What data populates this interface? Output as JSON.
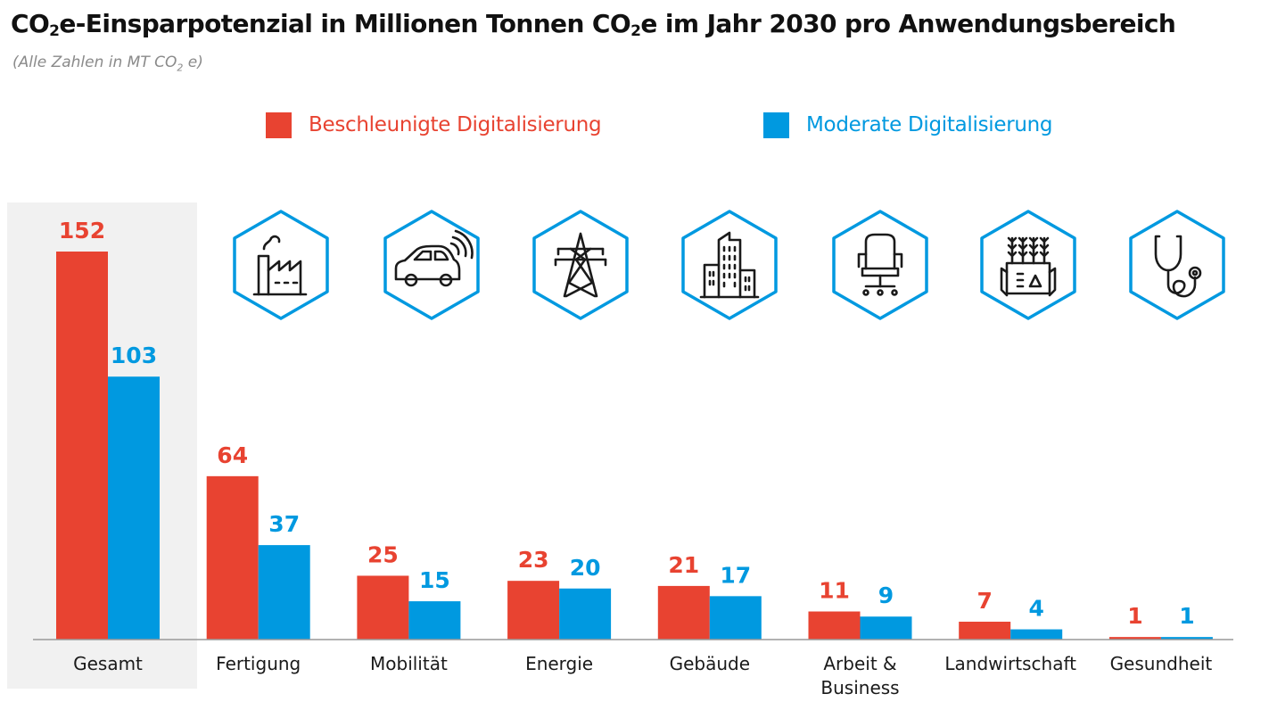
{
  "header": {
    "title_part1": "CO",
    "title_sub1": "2",
    "title_part2": "e-Einsparpotenzial in Millionen Tonnen CO",
    "title_sub2": "2",
    "title_part3": "e im Jahr 2030 pro Anwendungsbereich",
    "subtitle_part1": "(Alle Zahlen in MT CO",
    "subtitle_sub": "2",
    "subtitle_part2": " e)"
  },
  "colors": {
    "accelerated": "#e84331",
    "moderate": "#0099e0",
    "highlight_background": "#f1f1f1",
    "axis": "#999999",
    "icon_stroke": "#0099e0",
    "icon_fill": "#1a1a1a"
  },
  "legend": [
    {
      "label": "Beschleunigte Digitalisierung",
      "color": "#e84331"
    },
    {
      "label": "Moderate Digitalisierung",
      "color": "#0099e0"
    }
  ],
  "icons": [
    "factory-icon",
    "connected-car-icon",
    "power-pylon-icon",
    "buildings-icon",
    "office-chair-icon",
    "smart-farming-icon",
    "stethoscope-icon"
  ],
  "chart_data": {
    "type": "bar",
    "title": "CO2e-Einsparpotenzial in Millionen Tonnen CO2e im Jahr 2030 pro Anwendungsbereich",
    "subtitle": "(Alle Zahlen in MT CO2 e)",
    "categories": [
      "Gesamt",
      "Fertigung",
      "Mobilität",
      "Energie",
      "Gebäude",
      "Arbeit & Business",
      "Landwirtschaft",
      "Gesundheit"
    ],
    "category_lines": [
      [
        "Gesamt"
      ],
      [
        "Fertigung"
      ],
      [
        "Mobilität"
      ],
      [
        "Energie"
      ],
      [
        "Gebäude"
      ],
      [
        "Arbeit &",
        "Business"
      ],
      [
        "Landwirtschaft"
      ],
      [
        "Gesundheit"
      ]
    ],
    "series": [
      {
        "name": "Beschleunigte Digitalisierung",
        "values": [
          152,
          64,
          25,
          23,
          21,
          11,
          7,
          1
        ]
      },
      {
        "name": "Moderate Digitalisierung",
        "values": [
          103,
          37,
          15,
          20,
          17,
          9,
          4,
          1
        ]
      }
    ],
    "ylim": [
      0,
      152
    ],
    "highlighted_category": "Gesamt",
    "xlabel": "",
    "ylabel": "",
    "grid": false,
    "legend_position": "top"
  }
}
